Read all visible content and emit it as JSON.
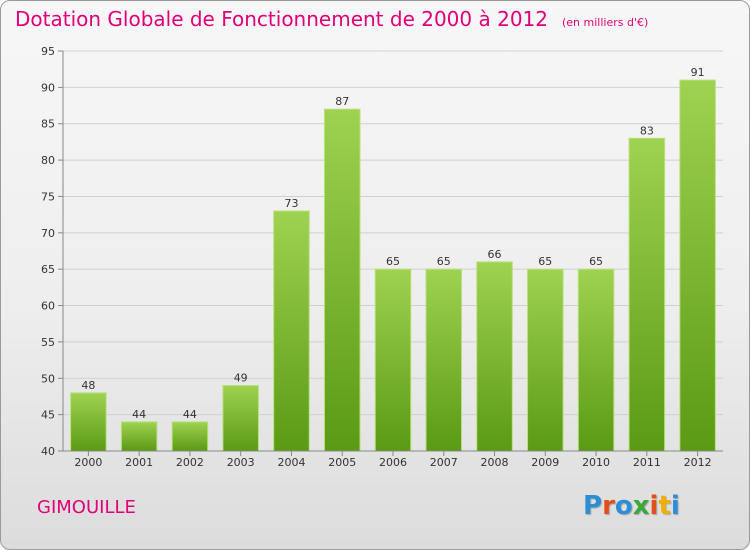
{
  "header": {
    "title": "Dotation Globale de Fonctionnement de 2000 à 2012",
    "subtitle": "(en milliers d'€)"
  },
  "footer": {
    "town": "GIMOUILLE",
    "brand": "Proxiti"
  },
  "colors": {
    "title": "#e0007a",
    "bar_light": "#9fd251",
    "bar_dark": "#5a9a14",
    "grid": "#d0d0d0",
    "axis": "#888888"
  },
  "chart_data": {
    "type": "bar",
    "title": "Dotation Globale de Fonctionnement de 2000 à 2012",
    "subtitle": "(en milliers d'€)",
    "categories": [
      "2000",
      "2001",
      "2002",
      "2003",
      "2004",
      "2005",
      "2006",
      "2007",
      "2008",
      "2009",
      "2010",
      "2011",
      "2012"
    ],
    "values": [
      48,
      44,
      44,
      49,
      73,
      87,
      65,
      65,
      66,
      65,
      65,
      83,
      91
    ],
    "ylim": [
      40,
      95
    ],
    "yticks": [
      40,
      45,
      50,
      55,
      60,
      65,
      70,
      75,
      80,
      85,
      90,
      95
    ],
    "grid": true,
    "data_labels": true
  }
}
